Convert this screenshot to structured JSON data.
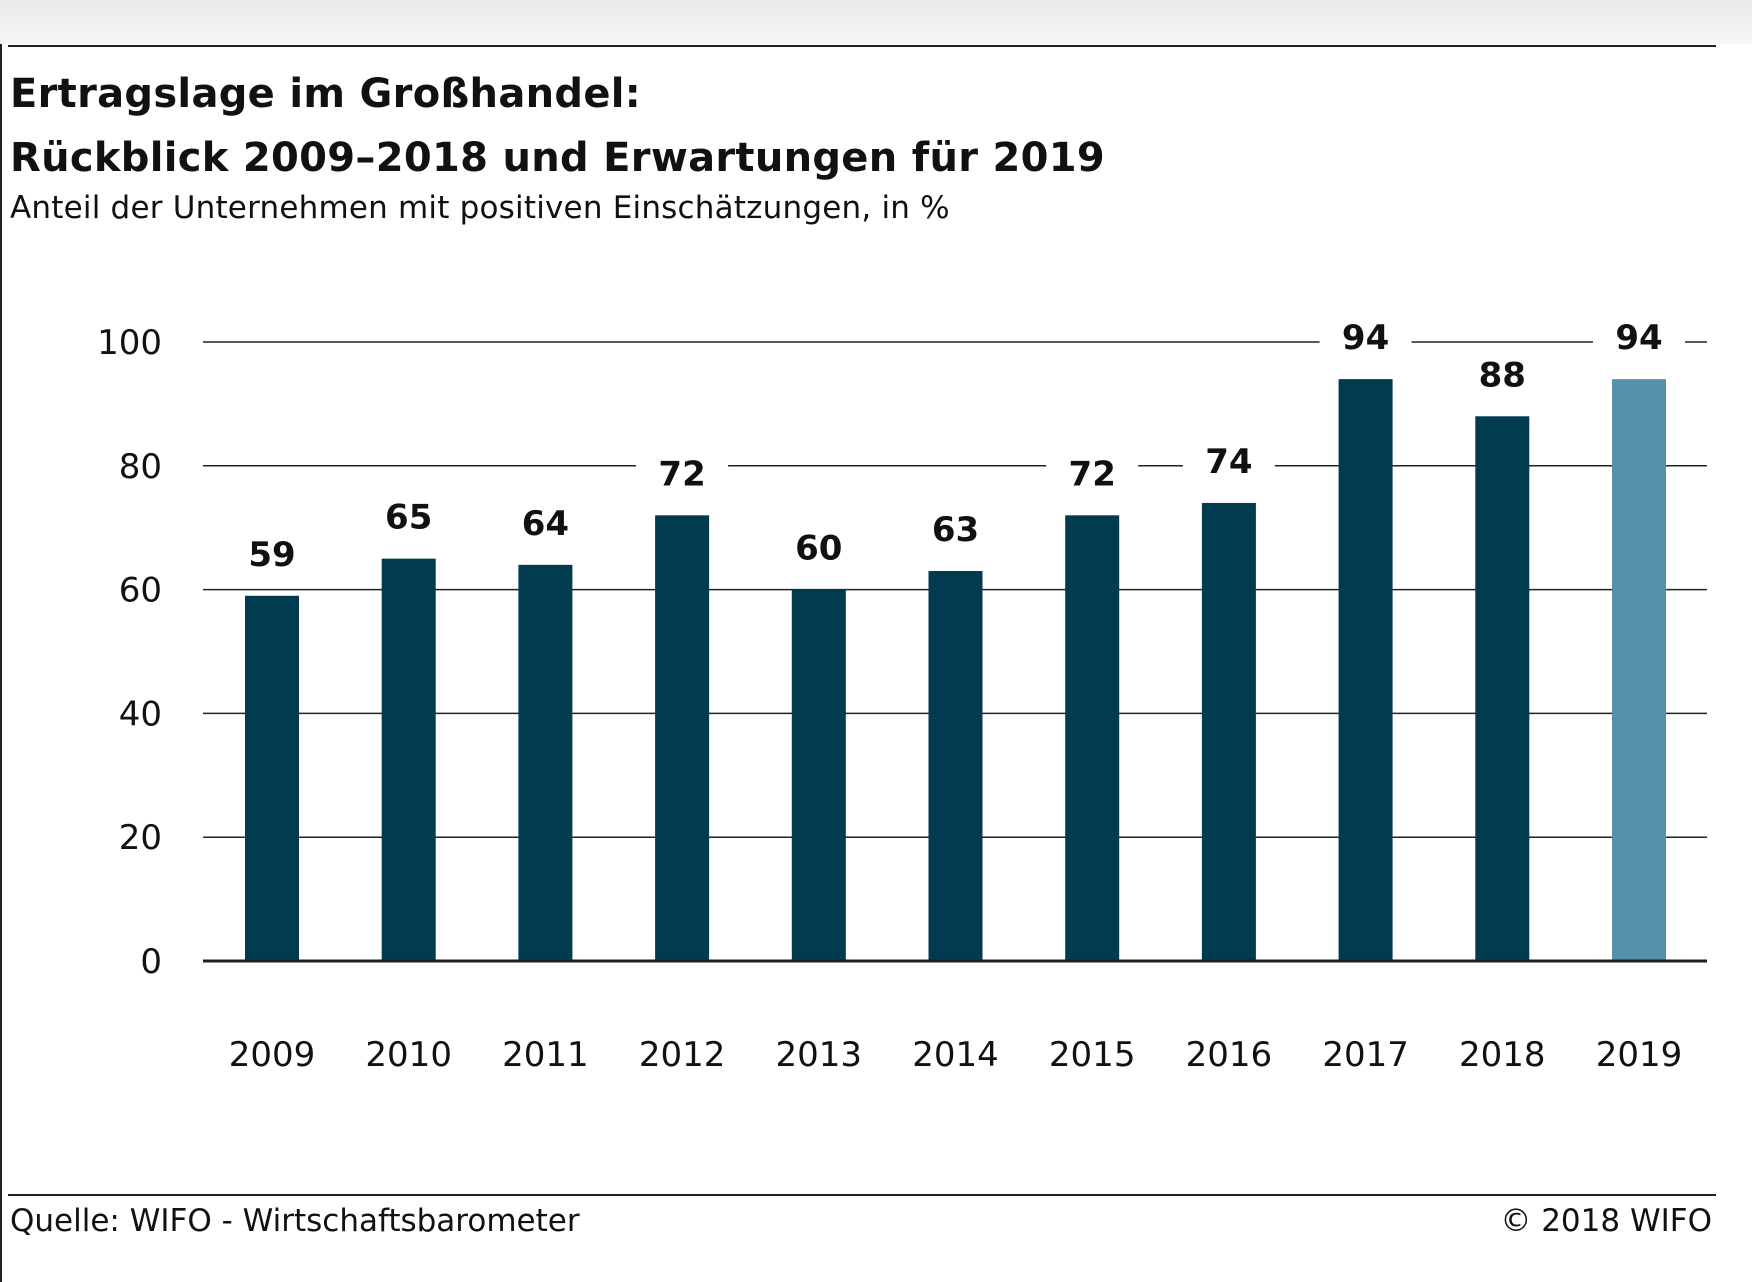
{
  "header": {
    "title_line1": "Ertragslage im Großhandel:",
    "title_line2": "Rückblick 2009–2018 und Erwartungen für 2019",
    "subtitle": "Anteil der Unternehmen mit positiven Einschätzungen, in %"
  },
  "footer": {
    "source": "Quelle: WIFO - Wirtschaftsbarometer",
    "copyright": "© 2018 WIFO"
  },
  "chart_data": {
    "type": "bar",
    "categories": [
      "2009",
      "2010",
      "2011",
      "2012",
      "2013",
      "2014",
      "2015",
      "2016",
      "2017",
      "2018",
      "2019"
    ],
    "values": [
      59,
      65,
      64,
      72,
      60,
      63,
      72,
      74,
      94,
      88,
      94
    ],
    "title": "Ertragslage im Großhandel: Rückblick 2009–2018 und Erwartungen für 2019",
    "subtitle": "Anteil der Unternehmen mit positiven Einschätzungen, in %",
    "xlabel": "",
    "ylabel": "",
    "ylim": [
      0,
      100
    ],
    "yticks": [
      0,
      20,
      40,
      60,
      80,
      100
    ],
    "grid": true,
    "data_labels": true,
    "colors": {
      "actual": "#023a4f",
      "expected": "#5591aa",
      "grid": "#222222"
    },
    "expected_categories": [
      "2019"
    ]
  }
}
